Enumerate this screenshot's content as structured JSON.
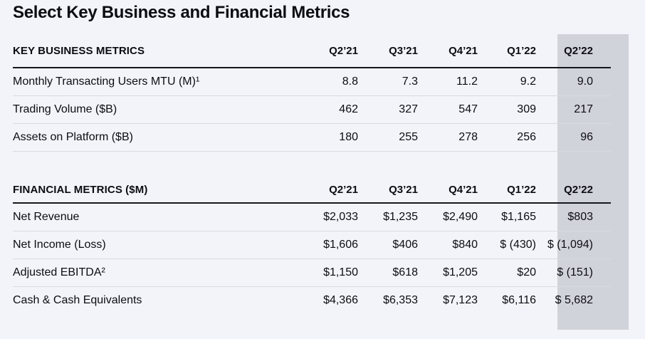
{
  "page": {
    "title": "Select Key Business and Financial Metrics"
  },
  "columns": [
    "Q2’21",
    "Q3’21",
    "Q4’21",
    "Q1’22",
    "Q2’22"
  ],
  "highlighted_column": "Q2’22",
  "colors": {
    "page_background": "#f2f4f9",
    "highlight_column_background": "#d0d3d9",
    "text": "#0b0d12",
    "header_rule": "#15171c",
    "row_divider": "#d8dbe1"
  },
  "tables": [
    {
      "section_header": "KEY BUSINESS METRICS",
      "rows": [
        {
          "label": "Monthly Transacting Users MTU (M)¹",
          "values": [
            "8.8",
            "7.3",
            "11.2",
            "9.2",
            "9.0"
          ]
        },
        {
          "label": "Trading Volume ($B)",
          "values": [
            "462",
            "327",
            "547",
            "309",
            "217"
          ]
        },
        {
          "label": "Assets on Platform ($B)",
          "values": [
            "180",
            "255",
            "278",
            "256",
            "96"
          ]
        }
      ]
    },
    {
      "section_header": "FINANCIAL METRICS ($M)",
      "rows": [
        {
          "label": "Net Revenue",
          "values": [
            "$2,033",
            "$1,235",
            "$2,490",
            "$1,165",
            "$803"
          ]
        },
        {
          "label": "Net Income (Loss)",
          "values": [
            "$1,606",
            "$406",
            "$840",
            "$ (430)",
            "$ (1,094)"
          ]
        },
        {
          "label": "Adjusted EBITDA²",
          "values": [
            "$1,150",
            "$618",
            "$1,205",
            "$20",
            "$ (151)"
          ]
        },
        {
          "label": "Cash & Cash Equivalents",
          "values": [
            "$4,366",
            "$6,353",
            "$7,123",
            "$6,116",
            "$ 5,682"
          ]
        }
      ]
    }
  ]
}
